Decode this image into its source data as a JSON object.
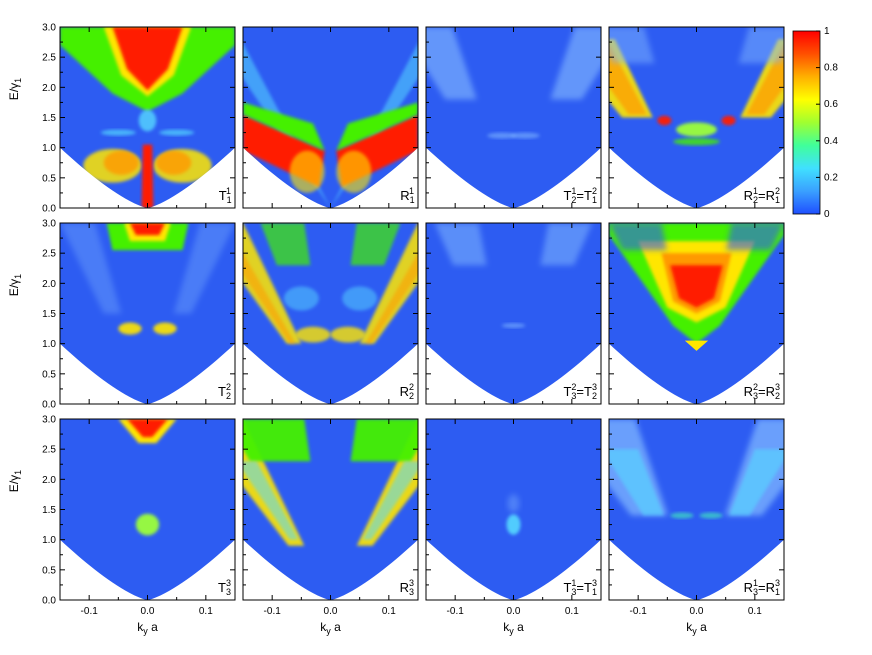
{
  "chart_data": {
    "type": "heatmap",
    "layout": {
      "rows": 3,
      "cols": 4
    },
    "xlabel": "k",
    "xlabel_sub": "y",
    "xlabel_tail": " a",
    "ylabel": "E/γ",
    "ylabel_sub": "1",
    "xlim": [
      -0.15,
      0.15
    ],
    "ylim": [
      0.0,
      3.0
    ],
    "x_ticks": [
      -0.1,
      0.0,
      0.1
    ],
    "x_tick_labels": [
      "-0.1",
      "0.0",
      "0.1"
    ],
    "y_ticks": [
      0.0,
      0.5,
      1.0,
      1.5,
      2.0,
      2.5,
      3.0
    ],
    "y_tick_labels": [
      "0.0",
      "0.5",
      "1.0",
      "1.5",
      "2.0",
      "2.5",
      "3.0"
    ],
    "colorbar": {
      "range": [
        0,
        1
      ],
      "ticks": [
        0,
        0.2,
        0.4,
        0.6,
        0.8,
        1
      ],
      "tick_labels": [
        "0",
        "0.2",
        "0.4",
        "0.6",
        "0.8",
        "1"
      ],
      "colors": [
        "#1f4fff",
        "#3aa0ff",
        "#40e0ff",
        "#40ff9a",
        "#a0ff30",
        "#ffff00",
        "#ffb000",
        "#ff5000",
        "#ff0000"
      ]
    },
    "colors": {
      "background": "#2d5cf2",
      "forbidden_region": "#ffffff"
    },
    "panels": [
      {
        "id": "p11",
        "label": "T",
        "sub": "1",
        "sup": "1",
        "eq": "",
        "sub2": "",
        "sup2": "",
        "row": 0,
        "col": 0
      },
      {
        "id": "p12",
        "label": "R",
        "sub": "1",
        "sup": "1",
        "eq": "",
        "sub2": "",
        "sup2": "",
        "row": 0,
        "col": 1
      },
      {
        "id": "p13",
        "label": "T",
        "sub": "2",
        "sup": "1",
        "eq": "=T",
        "sub2": "1",
        "sup2": "2",
        "row": 0,
        "col": 2
      },
      {
        "id": "p14",
        "label": "R",
        "sub": "2",
        "sup": "1",
        "eq": "=R",
        "sub2": "1",
        "sup2": "2",
        "row": 0,
        "col": 3
      },
      {
        "id": "p21",
        "label": "T",
        "sub": "2",
        "sup": "2",
        "eq": "",
        "sub2": "",
        "sup2": "",
        "row": 1,
        "col": 0
      },
      {
        "id": "p22",
        "label": "R",
        "sub": "2",
        "sup": "2",
        "eq": "",
        "sub2": "",
        "sup2": "",
        "row": 1,
        "col": 1
      },
      {
        "id": "p23",
        "label": "T",
        "sub": "3",
        "sup": "2",
        "eq": "=T",
        "sub2": "2",
        "sup2": "3",
        "row": 1,
        "col": 2
      },
      {
        "id": "p24",
        "label": "R",
        "sub": "3",
        "sup": "2",
        "eq": "=R",
        "sub2": "2",
        "sup2": "3",
        "row": 1,
        "col": 3
      },
      {
        "id": "p31",
        "label": "T",
        "sub": "3",
        "sup": "3",
        "eq": "",
        "sub2": "",
        "sup2": "",
        "row": 2,
        "col": 0
      },
      {
        "id": "p32",
        "label": "R",
        "sub": "3",
        "sup": "3",
        "eq": "",
        "sub2": "",
        "sup2": "",
        "row": 2,
        "col": 1
      },
      {
        "id": "p33",
        "label": "T",
        "sub": "3",
        "sup": "1",
        "eq": "=T",
        "sub2": "1",
        "sup2": "3",
        "row": 2,
        "col": 2
      },
      {
        "id": "p34",
        "label": "R",
        "sub": "3",
        "sup": "1",
        "eq": "=R",
        "sub2": "1",
        "sup2": "3",
        "row": 2,
        "col": 3
      }
    ]
  }
}
